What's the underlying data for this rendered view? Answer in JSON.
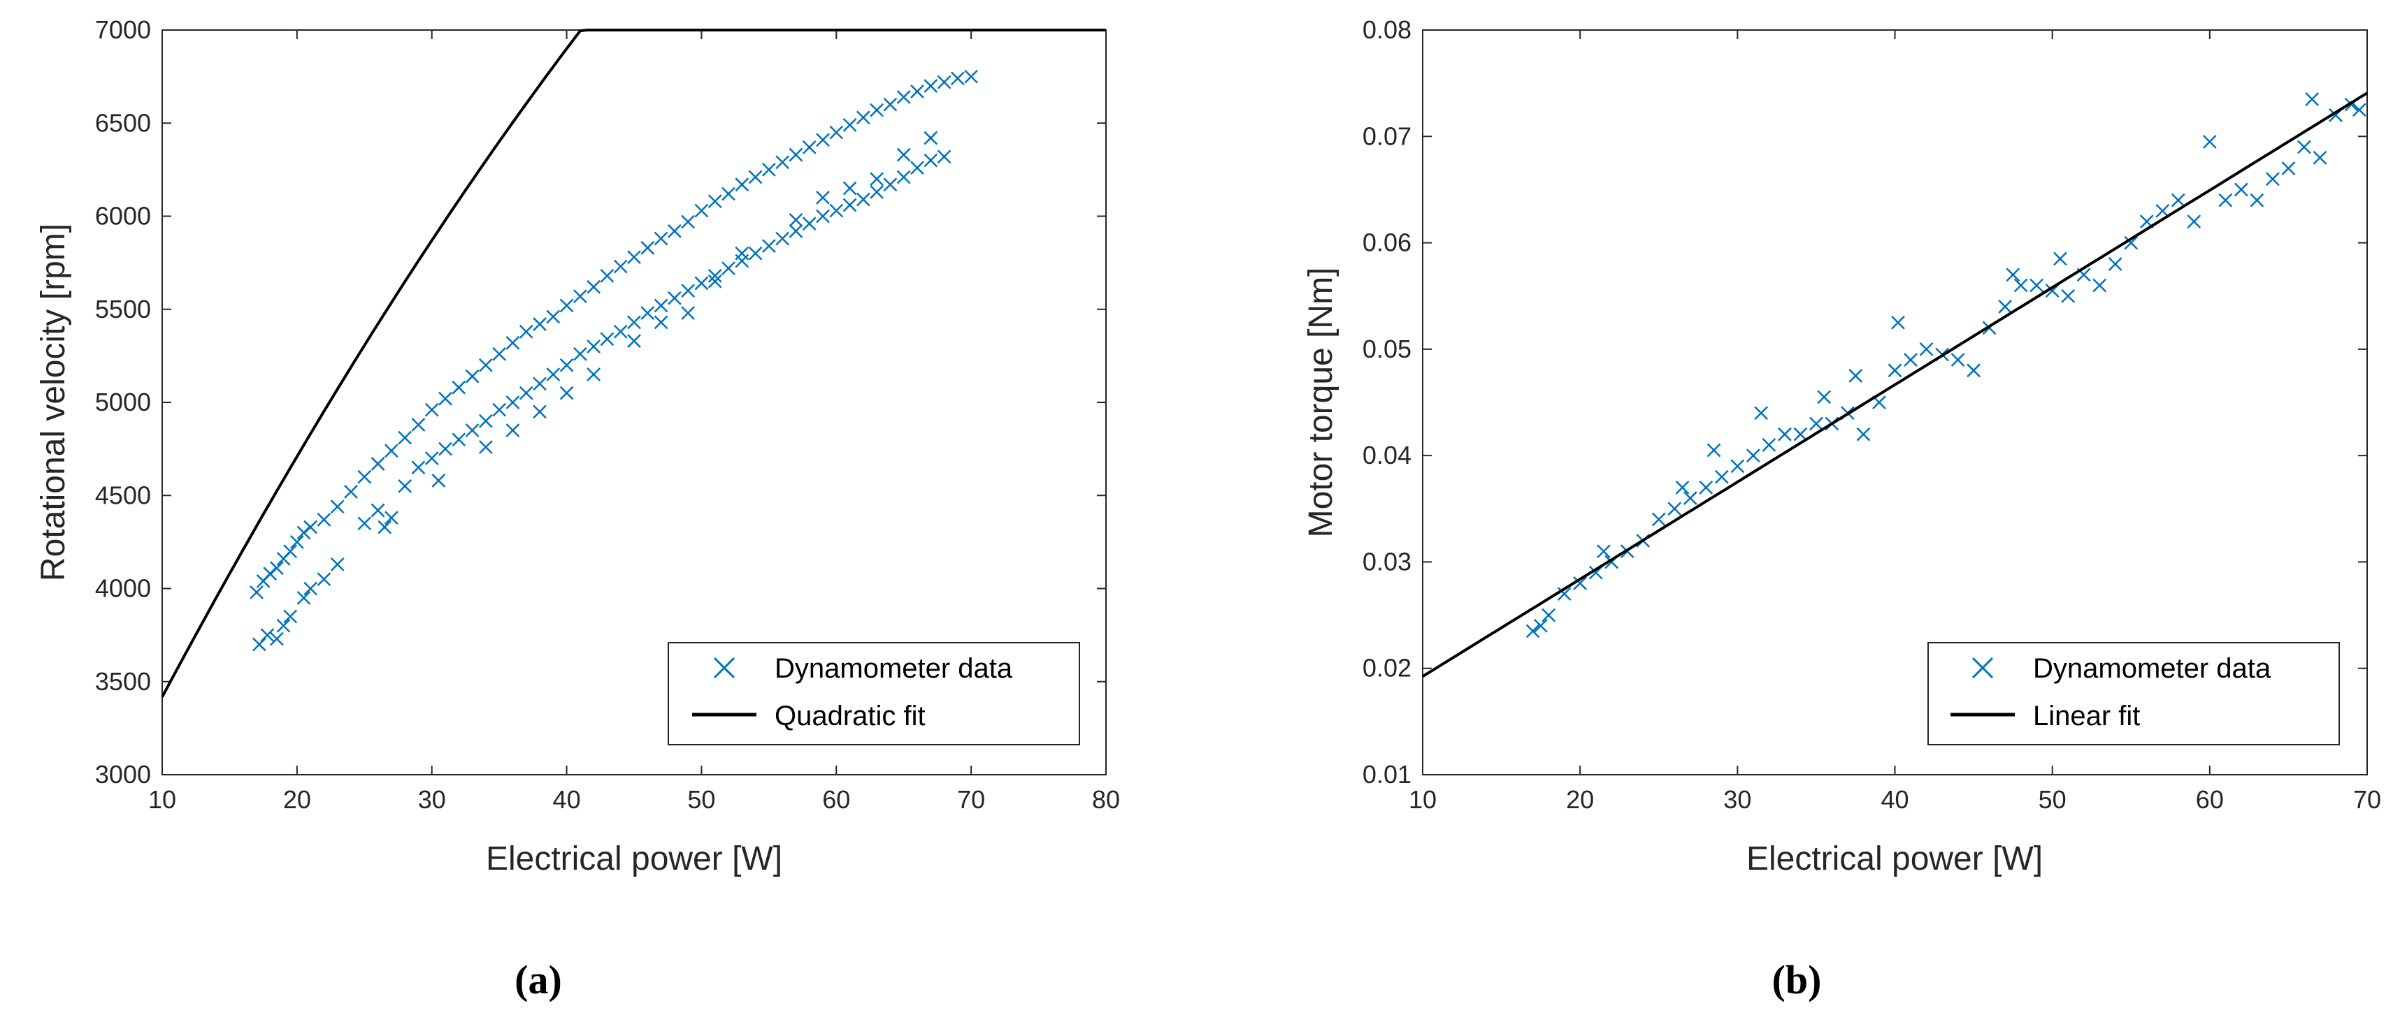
{
  "colors": {
    "data": "#0072BD",
    "fit": "#000000",
    "axis": "#262626"
  },
  "chart_data": [
    {
      "type": "scatter",
      "panel_label": "(a)",
      "xlabel": "Electrical power [W]",
      "ylabel": "Rotational velocity [rpm]",
      "xlim": [
        10,
        80
      ],
      "ylim": [
        3000,
        7000
      ],
      "xticks": [
        10,
        20,
        30,
        40,
        50,
        60,
        70,
        80
      ],
      "yticks": [
        3000,
        3500,
        4000,
        4500,
        5000,
        5500,
        6000,
        6500,
        7000
      ],
      "grid": false,
      "legend": {
        "position": "bottom-right",
        "entries": [
          "Dynamometer data",
          "Quadratic fit"
        ]
      },
      "series": [
        {
          "name": "Dynamometer data",
          "marker": "x",
          "points": [
            [
              17,
              3980
            ],
            [
              17.5,
              4040
            ],
            [
              18,
              4080
            ],
            [
              18.5,
              4110
            ],
            [
              19,
              4160
            ],
            [
              19.5,
              4200
            ],
            [
              20,
              4250
            ],
            [
              20.5,
              4300
            ],
            [
              21,
              4330
            ],
            [
              22,
              4370
            ],
            [
              23,
              4440
            ],
            [
              24,
              4520
            ],
            [
              25,
              4600
            ],
            [
              26,
              4670
            ],
            [
              27,
              4740
            ],
            [
              28,
              4810
            ],
            [
              29,
              4880
            ],
            [
              30,
              4960
            ],
            [
              31,
              5020
            ],
            [
              32,
              5080
            ],
            [
              33,
              5140
            ],
            [
              34,
              5200
            ],
            [
              35,
              5260
            ],
            [
              36,
              5320
            ],
            [
              37,
              5380
            ],
            [
              38,
              5420
            ],
            [
              39,
              5460
            ],
            [
              40,
              5520
            ],
            [
              41,
              5570
            ],
            [
              42,
              5620
            ],
            [
              43,
              5680
            ],
            [
              44,
              5730
            ],
            [
              45,
              5780
            ],
            [
              46,
              5830
            ],
            [
              47,
              5880
            ],
            [
              48,
              5920
            ],
            [
              49,
              5970
            ],
            [
              50,
              6030
            ],
            [
              51,
              6080
            ],
            [
              52,
              6120
            ],
            [
              53,
              6170
            ],
            [
              54,
              6210
            ],
            [
              55,
              6250
            ],
            [
              56,
              6290
            ],
            [
              57,
              6330
            ],
            [
              58,
              6370
            ],
            [
              59,
              6410
            ],
            [
              60,
              6450
            ],
            [
              61,
              6490
            ],
            [
              62,
              6530
            ],
            [
              63,
              6570
            ],
            [
              64,
              6600
            ],
            [
              65,
              6640
            ],
            [
              66,
              6670
            ],
            [
              67,
              6700
            ],
            [
              68,
              6720
            ],
            [
              69,
              6740
            ],
            [
              70,
              6750
            ],
            [
              17.2,
              3700
            ],
            [
              17.8,
              3750
            ],
            [
              18.5,
              3730
            ],
            [
              19,
              3800
            ],
            [
              19.5,
              3850
            ],
            [
              20.5,
              3950
            ],
            [
              21,
              4000
            ],
            [
              22,
              4050
            ],
            [
              23,
              4130
            ],
            [
              25,
              4350
            ],
            [
              26,
              4420
            ],
            [
              26.5,
              4330
            ],
            [
              27,
              4380
            ],
            [
              28,
              4550
            ],
            [
              29,
              4650
            ],
            [
              30,
              4700
            ],
            [
              30.5,
              4580
            ],
            [
              31,
              4750
            ],
            [
              32,
              4800
            ],
            [
              33,
              4850
            ],
            [
              34,
              4900
            ],
            [
              35,
              4960
            ],
            [
              36,
              5000
            ],
            [
              37,
              5050
            ],
            [
              38,
              5100
            ],
            [
              39,
              5150
            ],
            [
              40,
              5200
            ],
            [
              41,
              5260
            ],
            [
              42,
              5300
            ],
            [
              43,
              5340
            ],
            [
              44,
              5380
            ],
            [
              45,
              5430
            ],
            [
              46,
              5480
            ],
            [
              47,
              5520
            ],
            [
              48,
              5560
            ],
            [
              49,
              5600
            ],
            [
              50,
              5640
            ],
            [
              51,
              5680
            ],
            [
              52,
              5720
            ],
            [
              53,
              5760
            ],
            [
              54,
              5800
            ],
            [
              55,
              5840
            ],
            [
              56,
              5880
            ],
            [
              57,
              5920
            ],
            [
              58,
              5960
            ],
            [
              59,
              6000
            ],
            [
              60,
              6030
            ],
            [
              61,
              6060
            ],
            [
              62,
              6090
            ],
            [
              63,
              6130
            ],
            [
              64,
              6170
            ],
            [
              65,
              6210
            ],
            [
              66,
              6260
            ],
            [
              67,
              6300
            ],
            [
              68,
              6320
            ],
            [
              34,
              4760
            ],
            [
              36,
              4850
            ],
            [
              38,
              4950
            ],
            [
              40,
              5050
            ],
            [
              42,
              5150
            ],
            [
              45,
              5330
            ],
            [
              47,
              5430
            ],
            [
              49,
              5480
            ],
            [
              51,
              5650
            ],
            [
              53,
              5800
            ],
            [
              57,
              5980
            ],
            [
              59,
              6100
            ],
            [
              61,
              6150
            ],
            [
              63,
              6200
            ],
            [
              65,
              6330
            ],
            [
              67,
              6420
            ]
          ]
        },
        {
          "name": "Quadratic fit",
          "model": "quadratic",
          "coefficients": [
            1995,
            148.8,
            -0.6545
          ]
        }
      ]
    },
    {
      "type": "scatter",
      "panel_label": "(b)",
      "xlabel": "Electrical power [W]",
      "ylabel": "Motor torque [Nm]",
      "xlim": [
        10,
        70
      ],
      "ylim": [
        0.01,
        0.08
      ],
      "xticks": [
        10,
        20,
        30,
        40,
        50,
        60,
        70
      ],
      "yticks": [
        0.01,
        0.02,
        0.03,
        0.04,
        0.05,
        0.06,
        0.07,
        0.08
      ],
      "grid": false,
      "legend": {
        "position": "bottom-right",
        "entries": [
          "Dynamometer data",
          "Linear fit"
        ]
      },
      "series": [
        {
          "name": "Dynamometer data",
          "marker": "x",
          "points": [
            [
              17,
              0.0235
            ],
            [
              17.5,
              0.024
            ],
            [
              18,
              0.025
            ],
            [
              19,
              0.027
            ],
            [
              20,
              0.028
            ],
            [
              21,
              0.029
            ],
            [
              21.5,
              0.031
            ],
            [
              22,
              0.03
            ],
            [
              23,
              0.031
            ],
            [
              24,
              0.032
            ],
            [
              25,
              0.034
            ],
            [
              26,
              0.035
            ],
            [
              26.5,
              0.037
            ],
            [
              27,
              0.036
            ],
            [
              28,
              0.037
            ],
            [
              28.5,
              0.0405
            ],
            [
              29,
              0.038
            ],
            [
              30,
              0.039
            ],
            [
              31,
              0.04
            ],
            [
              31.5,
              0.044
            ],
            [
              32,
              0.041
            ],
            [
              33,
              0.042
            ],
            [
              34,
              0.042
            ],
            [
              35,
              0.043
            ],
            [
              35.5,
              0.0455
            ],
            [
              36,
              0.043
            ],
            [
              37,
              0.044
            ],
            [
              37.5,
              0.0475
            ],
            [
              38,
              0.042
            ],
            [
              39,
              0.045
            ],
            [
              40,
              0.048
            ],
            [
              40.2,
              0.0525
            ],
            [
              41,
              0.049
            ],
            [
              42,
              0.05
            ],
            [
              43,
              0.0495
            ],
            [
              44,
              0.049
            ],
            [
              45,
              0.048
            ],
            [
              46,
              0.052
            ],
            [
              47,
              0.054
            ],
            [
              47.5,
              0.057
            ],
            [
              48,
              0.056
            ],
            [
              49,
              0.056
            ],
            [
              50,
              0.0555
            ],
            [
              50.5,
              0.0585
            ],
            [
              51,
              0.055
            ],
            [
              52,
              0.057
            ],
            [
              53,
              0.056
            ],
            [
              54,
              0.058
            ],
            [
              55,
              0.06
            ],
            [
              56,
              0.062
            ],
            [
              57,
              0.063
            ],
            [
              58,
              0.064
            ],
            [
              59,
              0.062
            ],
            [
              60,
              0.0695
            ],
            [
              61,
              0.064
            ],
            [
              62,
              0.065
            ],
            [
              63,
              0.064
            ],
            [
              64,
              0.066
            ],
            [
              65,
              0.067
            ],
            [
              66,
              0.069
            ],
            [
              66.5,
              0.0735
            ],
            [
              67,
              0.068
            ],
            [
              68,
              0.072
            ],
            [
              69,
              0.073
            ],
            [
              69.5,
              0.0725
            ]
          ]
        },
        {
          "name": "Linear fit",
          "model": "linear",
          "coefficients": [
            0.0101,
            0.000914
          ]
        }
      ]
    }
  ]
}
